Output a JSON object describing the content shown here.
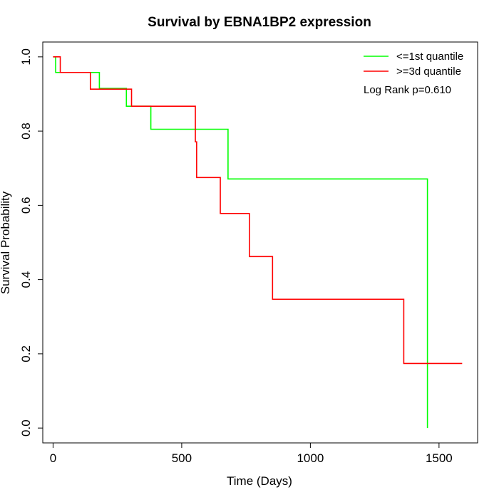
{
  "chart_data": {
    "type": "line",
    "title": "Survival by EBNA1BP2 expression",
    "xlabel": "Time (Days)",
    "ylabel": "Survival Probability",
    "xlim": [
      -40,
      1650
    ],
    "ylim": [
      -0.04,
      1.04
    ],
    "xticks": [
      0,
      500,
      1000,
      1500
    ],
    "yticks": [
      0.0,
      0.2,
      0.4,
      0.6,
      0.8,
      1.0
    ],
    "xtick_labels": [
      "0",
      "500",
      "1000",
      "1500"
    ],
    "ytick_labels": [
      "0.0",
      "0.2",
      "0.4",
      "0.6",
      "0.8",
      "1.0"
    ],
    "legend_position": "top-right",
    "annotation": "Log Rank p=0.610",
    "grid": false,
    "series": [
      {
        "name": "<=1st quantile",
        "color": "#00ff00",
        "step": true,
        "x": [
          0,
          10,
          180,
          285,
          380,
          680,
          1455,
          1455
        ],
        "y": [
          1.0,
          0.958,
          0.915,
          0.867,
          0.805,
          0.671,
          0.671,
          0.0
        ]
      },
      {
        "name": ">=3d quantile",
        "color": "#ff0000",
        "step": true,
        "x": [
          0,
          28,
          145,
          305,
          553,
          558,
          650,
          763,
          853,
          1363,
          1590
        ],
        "y": [
          1.0,
          0.958,
          0.913,
          0.867,
          0.771,
          0.675,
          0.578,
          0.462,
          0.347,
          0.174,
          0.174
        ]
      }
    ]
  }
}
